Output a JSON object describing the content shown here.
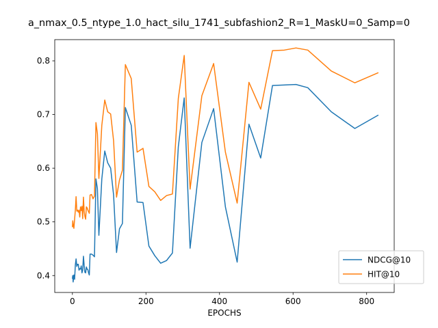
{
  "chart_data": {
    "type": "line",
    "title": "a_nmax_0.5_ntype_1.0_hact_silu_1741_subfashion2_R=1_MaskU=0_Samp=0",
    "xlabel": "EPOCHS",
    "ylabel": "",
    "xlim": [
      -48,
      875
    ],
    "ylim": [
      0.3685,
      0.8395
    ],
    "xticks": [
      0,
      200,
      400,
      600,
      800
    ],
    "yticks": [
      0.4,
      0.5,
      0.6,
      0.7,
      0.8
    ],
    "xtick_labels": [
      "0",
      "200",
      "400",
      "600",
      "800"
    ],
    "ytick_labels": [
      "0.4",
      "0.5",
      "0.6",
      "0.7",
      "0.8"
    ],
    "grid": false,
    "legend_position": "lower right",
    "series": [
      {
        "name": "NDCG@10",
        "color": "#1f77b4",
        "points": [
          [
            0,
            0.394
          ],
          [
            1,
            0.4
          ],
          [
            2,
            0.388
          ],
          [
            4,
            0.401
          ],
          [
            6,
            0.393
          ],
          [
            8,
            0.42
          ],
          [
            10,
            0.431
          ],
          [
            12,
            0.417
          ],
          [
            14,
            0.421
          ],
          [
            16,
            0.421
          ],
          [
            18,
            0.41
          ],
          [
            20,
            0.413
          ],
          [
            22,
            0.412
          ],
          [
            24,
            0.418
          ],
          [
            26,
            0.405
          ],
          [
            28,
            0.41
          ],
          [
            30,
            0.436
          ],
          [
            32,
            0.419
          ],
          [
            34,
            0.406
          ],
          [
            36,
            0.405
          ],
          [
            38,
            0.416
          ],
          [
            40,
            0.412
          ],
          [
            42,
            0.411
          ],
          [
            44,
            0.405
          ],
          [
            46,
            0.401
          ],
          [
            48,
            0.44
          ],
          [
            52,
            0.44
          ],
          [
            56,
            0.438
          ],
          [
            60,
            0.435
          ],
          [
            64,
            0.58
          ],
          [
            68,
            0.562
          ],
          [
            72,
            0.475
          ],
          [
            80,
            0.58
          ],
          [
            88,
            0.632
          ],
          [
            96,
            0.61
          ],
          [
            104,
            0.6
          ],
          [
            112,
            0.55
          ],
          [
            120,
            0.443
          ],
          [
            128,
            0.487
          ],
          [
            136,
            0.497
          ],
          [
            144,
            0.713
          ],
          [
            160,
            0.68
          ],
          [
            176,
            0.537
          ],
          [
            192,
            0.536
          ],
          [
            208,
            0.455
          ],
          [
            224,
            0.437
          ],
          [
            240,
            0.423
          ],
          [
            256,
            0.428
          ],
          [
            272,
            0.442
          ],
          [
            288,
            0.64
          ],
          [
            304,
            0.731
          ],
          [
            320,
            0.451
          ],
          [
            352,
            0.648
          ],
          [
            384,
            0.711
          ],
          [
            416,
            0.528
          ],
          [
            448,
            0.425
          ],
          [
            480,
            0.682
          ],
          [
            512,
            0.619
          ],
          [
            544,
            0.754
          ],
          [
            576,
            0.755
          ],
          [
            608,
            0.756
          ],
          [
            640,
            0.75
          ],
          [
            704,
            0.705
          ],
          [
            768,
            0.674
          ],
          [
            832,
            0.699
          ]
        ]
      },
      {
        "name": "HIT@10",
        "color": "#ff7f0e",
        "points": [
          [
            0,
            0.49
          ],
          [
            1,
            0.502
          ],
          [
            2,
            0.496
          ],
          [
            4,
            0.488
          ],
          [
            6,
            0.505
          ],
          [
            8,
            0.522
          ],
          [
            10,
            0.547
          ],
          [
            12,
            0.52
          ],
          [
            14,
            0.522
          ],
          [
            16,
            0.518
          ],
          [
            18,
            0.522
          ],
          [
            20,
            0.509
          ],
          [
            22,
            0.528
          ],
          [
            24,
            0.521
          ],
          [
            26,
            0.529
          ],
          [
            28,
            0.506
          ],
          [
            30,
            0.546
          ],
          [
            32,
            0.52
          ],
          [
            34,
            0.51
          ],
          [
            36,
            0.505
          ],
          [
            38,
            0.528
          ],
          [
            40,
            0.526
          ],
          [
            42,
            0.522
          ],
          [
            44,
            0.519
          ],
          [
            46,
            0.516
          ],
          [
            48,
            0.55
          ],
          [
            52,
            0.551
          ],
          [
            56,
            0.543
          ],
          [
            60,
            0.548
          ],
          [
            64,
            0.685
          ],
          [
            68,
            0.664
          ],
          [
            72,
            0.581
          ],
          [
            80,
            0.68
          ],
          [
            88,
            0.727
          ],
          [
            96,
            0.705
          ],
          [
            104,
            0.701
          ],
          [
            112,
            0.651
          ],
          [
            120,
            0.546
          ],
          [
            128,
            0.578
          ],
          [
            136,
            0.596
          ],
          [
            144,
            0.793
          ],
          [
            160,
            0.767
          ],
          [
            176,
            0.63
          ],
          [
            192,
            0.637
          ],
          [
            208,
            0.566
          ],
          [
            224,
            0.556
          ],
          [
            240,
            0.54
          ],
          [
            256,
            0.549
          ],
          [
            272,
            0.552
          ],
          [
            288,
            0.73
          ],
          [
            304,
            0.81
          ],
          [
            320,
            0.561
          ],
          [
            352,
            0.735
          ],
          [
            384,
            0.795
          ],
          [
            416,
            0.63
          ],
          [
            448,
            0.535
          ],
          [
            480,
            0.76
          ],
          [
            512,
            0.71
          ],
          [
            544,
            0.819
          ],
          [
            576,
            0.82
          ],
          [
            608,
            0.824
          ],
          [
            640,
            0.82
          ],
          [
            704,
            0.781
          ],
          [
            768,
            0.759
          ],
          [
            832,
            0.778
          ]
        ]
      }
    ]
  }
}
